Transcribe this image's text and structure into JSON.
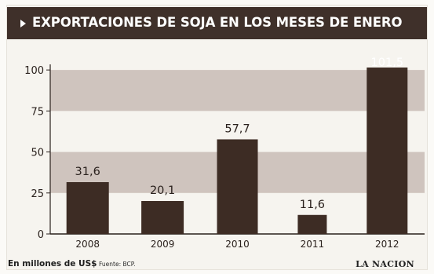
{
  "chart_data": {
    "type": "bar",
    "title": "EXPORTACIONES DE SOJA EN LOS MESES DE ENERO",
    "categories": [
      "2008",
      "2009",
      "2010",
      "2011",
      "2012"
    ],
    "values": [
      31.6,
      20.1,
      57.7,
      11.6,
      101.5
    ],
    "value_labels": [
      "31,6",
      "20,1",
      "57,7",
      "11,6",
      "101,5"
    ],
    "y_ticks": [
      0,
      25,
      50,
      75,
      100
    ],
    "ylim": [
      0,
      101.5
    ],
    "xlabel": "",
    "ylabel": "",
    "grid": "horizontal shaded bands",
    "colors": {
      "bar": "#3d2c24",
      "band": "#cfc4be",
      "header": "#3f302a"
    }
  },
  "footer": {
    "unit": "En millones de US$",
    "source": "Fuente: BCP.",
    "brand": "LA NACION"
  }
}
